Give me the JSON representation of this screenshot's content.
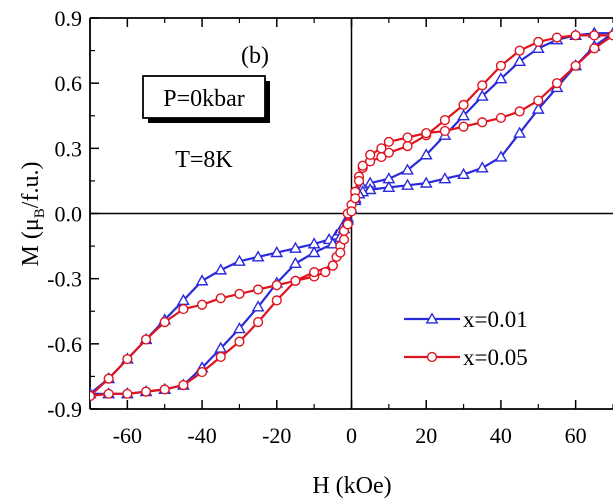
{
  "chart_data": {
    "type": "line",
    "xlabel": "H (kOe)",
    "ylabel": "M (μB/f.u.)",
    "xlim": [
      -70,
      70
    ],
    "ylim": [
      -0.9,
      0.9
    ],
    "x_ticks": [
      -60,
      -40,
      -20,
      0,
      20,
      40,
      60
    ],
    "y_ticks": [
      0.9,
      0.6,
      0.3,
      0.0,
      -0.3,
      -0.6,
      -0.9
    ],
    "y_tick_labels": [
      "0.9",
      "0.6",
      "0.3",
      "0.0",
      "-0.3",
      "-0.6",
      "-0.9"
    ],
    "panel_label": "(b)",
    "annotations": {
      "pressure": "P=0kbar",
      "temperature": "T=8K"
    },
    "legend_position": "bottom-right",
    "series": [
      {
        "name": "x=0.01",
        "color": "#2a2adc",
        "marker": "triangle",
        "x": [
          -70,
          -65,
          -60,
          -55,
          -50,
          -45,
          -40,
          -35,
          -30,
          -25,
          -20,
          -15,
          -10,
          -6,
          -4,
          -3,
          -2,
          -1,
          0,
          1,
          2,
          3,
          5,
          10,
          15,
          20,
          25,
          30,
          35,
          40,
          45,
          50,
          55,
          60,
          65,
          70,
          65,
          60,
          55,
          50,
          45,
          40,
          35,
          30,
          25,
          20,
          15,
          10,
          5,
          3,
          2,
          1,
          0,
          -1,
          -2,
          -3,
          -5,
          -10,
          -15,
          -20,
          -25,
          -30,
          -35,
          -40,
          -45,
          -50,
          -55,
          -60,
          -65,
          -70
        ],
        "y": [
          -0.83,
          -0.76,
          -0.67,
          -0.58,
          -0.49,
          -0.4,
          -0.31,
          -0.26,
          -0.22,
          -0.2,
          -0.18,
          -0.16,
          -0.14,
          -0.12,
          -0.1,
          -0.08,
          -0.05,
          -0.02,
          0.02,
          0.06,
          0.09,
          0.12,
          0.14,
          0.16,
          0.2,
          0.27,
          0.36,
          0.45,
          0.54,
          0.62,
          0.7,
          0.76,
          0.8,
          0.82,
          0.83,
          0.83,
          0.77,
          0.68,
          0.58,
          0.48,
          0.37,
          0.26,
          0.21,
          0.18,
          0.16,
          0.14,
          0.13,
          0.12,
          0.11,
          0.1,
          0.09,
          0.07,
          0.02,
          -0.03,
          -0.07,
          -0.11,
          -0.14,
          -0.18,
          -0.23,
          -0.32,
          -0.43,
          -0.53,
          -0.62,
          -0.71,
          -0.79,
          -0.81,
          -0.82,
          -0.83,
          -0.83,
          -0.83
        ]
      },
      {
        "name": "x=0.05",
        "color": "#e0141e",
        "marker": "circle",
        "x": [
          -70,
          -65,
          -60,
          -55,
          -50,
          -45,
          -40,
          -35,
          -30,
          -25,
          -20,
          -15,
          -10,
          -7,
          -5,
          -4,
          -3,
          -2,
          -1,
          0,
          1,
          2,
          3,
          5,
          8,
          10,
          15,
          20,
          25,
          30,
          35,
          40,
          45,
          50,
          55,
          60,
          65,
          70,
          65,
          60,
          55,
          50,
          45,
          40,
          35,
          30,
          25,
          20,
          15,
          10,
          8,
          5,
          3,
          2,
          1,
          0,
          -1,
          -2,
          -3,
          -5,
          -10,
          -15,
          -20,
          -25,
          -30,
          -35,
          -40,
          -45,
          -50,
          -55,
          -60,
          -65,
          -70
        ],
        "y": [
          -0.84,
          -0.76,
          -0.67,
          -0.58,
          -0.5,
          -0.44,
          -0.42,
          -0.39,
          -0.37,
          -0.35,
          -0.33,
          -0.31,
          -0.29,
          -0.27,
          -0.24,
          -0.2,
          -0.15,
          -0.08,
          0.0,
          0.04,
          0.1,
          0.17,
          0.21,
          0.24,
          0.26,
          0.28,
          0.31,
          0.36,
          0.43,
          0.5,
          0.59,
          0.68,
          0.75,
          0.79,
          0.81,
          0.82,
          0.82,
          0.82,
          0.76,
          0.68,
          0.6,
          0.52,
          0.47,
          0.44,
          0.42,
          0.4,
          0.38,
          0.37,
          0.35,
          0.33,
          0.3,
          0.27,
          0.22,
          0.15,
          0.07,
          0.01,
          -0.05,
          -0.12,
          -0.18,
          -0.24,
          -0.27,
          -0.31,
          -0.4,
          -0.5,
          -0.59,
          -0.66,
          -0.73,
          -0.79,
          -0.81,
          -0.82,
          -0.83,
          -0.83,
          -0.84
        ]
      }
    ]
  }
}
